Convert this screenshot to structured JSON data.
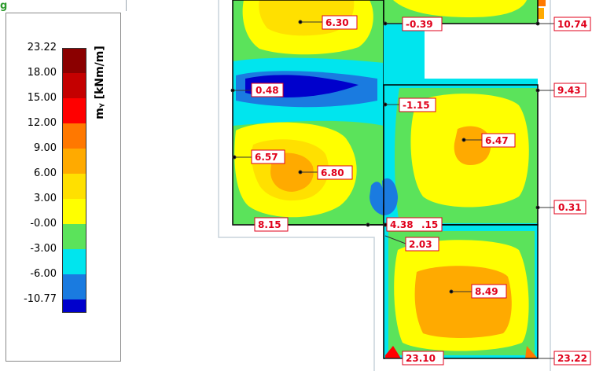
{
  "legend": {
    "unit_label": "mᵧ [kNm/m]",
    "values": [
      "23.22",
      "18.00",
      "15.00",
      "12.00",
      "9.00",
      "6.00",
      "3.00",
      "-0.00",
      "-3.00",
      "-6.00",
      "-10.77"
    ],
    "colors": [
      "#8b0000",
      "#c40000",
      "#ff0000",
      "#ff7800",
      "#ffaa00",
      "#ffe000",
      "#ffff00",
      "#5be35b",
      "#00e5ee",
      "#1a7be0",
      "#0000cc"
    ]
  },
  "labels": {
    "a": "6.30",
    "b": "-0.39",
    "c": "10.74",
    "d": "0.48",
    "e": "9.43",
    "f": "-1.15",
    "g": "6.47",
    "h": "6.57",
    "i": "6.80",
    "j": "0.31",
    "k": "8.15",
    "l": "4.38",
    "m": ".15",
    "n": "2.03",
    "o": "8.49",
    "p": "23.10",
    "q": "23.22"
  }
}
